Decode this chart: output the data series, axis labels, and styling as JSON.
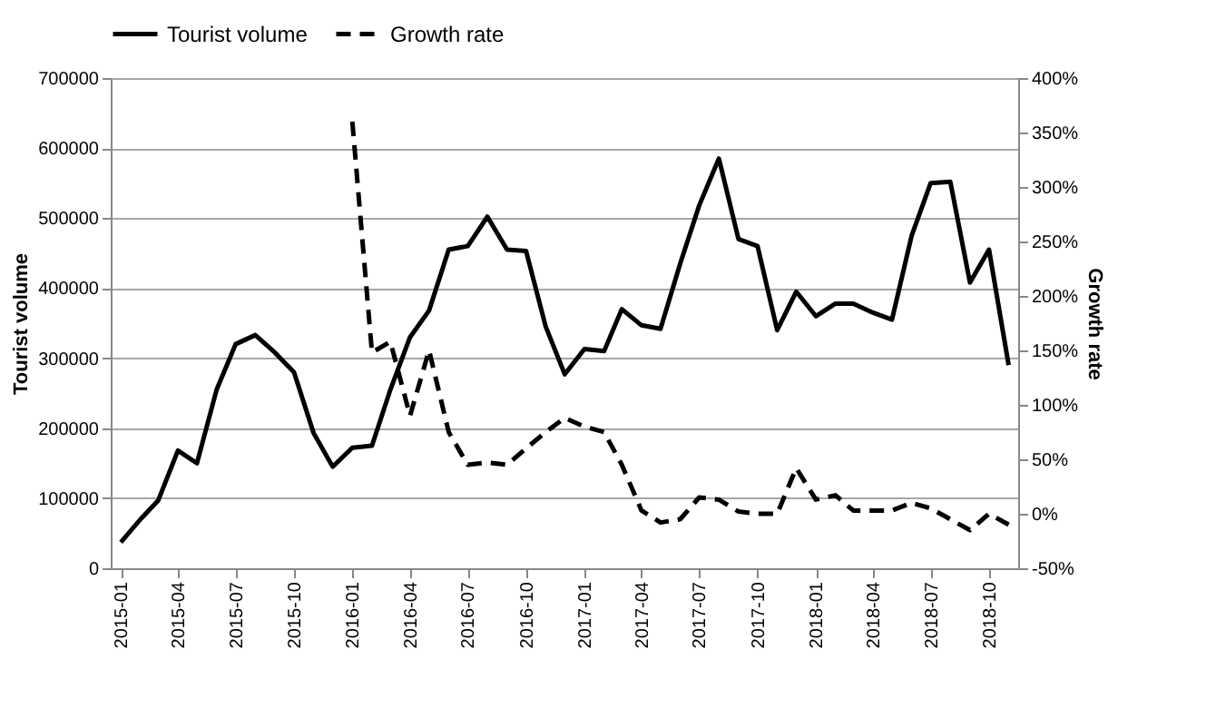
{
  "chart_data": {
    "type": "line",
    "xlabel": null,
    "ylabel": "Tourist volume",
    "y2label": "Growth rate",
    "x": [
      "2015-01",
      "2015-02",
      "2015-03",
      "2015-04",
      "2015-05",
      "2015-06",
      "2015-07",
      "2015-08",
      "2015-09",
      "2015-10",
      "2015-11",
      "2015-12",
      "2016-01",
      "2016-02",
      "2016-03",
      "2016-04",
      "2016-05",
      "2016-06",
      "2016-07",
      "2016-08",
      "2016-09",
      "2016-10",
      "2016-11",
      "2016-12",
      "2017-01",
      "2017-02",
      "2017-03",
      "2017-04",
      "2017-05",
      "2017-06",
      "2017-07",
      "2017-08",
      "2017-09",
      "2017-10",
      "2017-11",
      "2017-12",
      "2018-01",
      "2018-02",
      "2018-03",
      "2018-04",
      "2018-05",
      "2018-06",
      "2018-07",
      "2018-08",
      "2018-09",
      "2018-10",
      "2018-11"
    ],
    "series": [
      {
        "name": "Tourist volume",
        "color": "#000000",
        "line_style": "solid",
        "values": [
          37000,
          70000,
          97000,
          168000,
          150000,
          255000,
          320000,
          333000,
          308000,
          280000,
          193000,
          145000,
          172000,
          175000,
          255000,
          330000,
          368000,
          455000,
          460000,
          502000,
          455000,
          453000,
          345000,
          277000,
          313000,
          310000,
          370000,
          347000,
          342000,
          435000,
          518000,
          585000,
          470000,
          460000,
          340000,
          395000,
          360000,
          378000,
          378000,
          365000,
          355000,
          475000,
          550000,
          552000,
          408000,
          455000,
          290000
        ]
      },
      {
        "name": "Growth rate",
        "color": "#000000",
        "line_style": "dashed",
        "axis": "y2",
        "values": [
          null,
          null,
          null,
          null,
          null,
          null,
          null,
          null,
          null,
          null,
          null,
          null,
          360,
          148,
          158,
          90,
          150,
          75,
          45,
          47,
          45,
          60,
          75,
          88,
          80,
          75,
          45,
          3,
          -8,
          -5,
          15,
          13,
          2,
          0,
          0,
          42,
          13,
          17,
          3,
          3,
          3,
          10,
          5,
          -5,
          -15,
          0,
          -10
        ]
      }
    ],
    "xlim": [
      "2014-12-16",
      "2018-11-16"
    ],
    "xticks": [
      {
        "value": "2015-01",
        "label": "2015-01"
      },
      {
        "value": "2015-04",
        "label": "2015-04"
      },
      {
        "value": "2015-07",
        "label": "2015-07"
      },
      {
        "value": "2015-10",
        "label": "2015-10"
      },
      {
        "value": "2016-01",
        "label": "2016-01"
      },
      {
        "value": "2016-04",
        "label": "2016-04"
      },
      {
        "value": "2016-07",
        "label": "2016-07"
      },
      {
        "value": "2016-10",
        "label": "2016-10"
      },
      {
        "value": "2017-01",
        "label": "2017-01"
      },
      {
        "value": "2017-04",
        "label": "2017-04"
      },
      {
        "value": "2017-07",
        "label": "2017-07"
      },
      {
        "value": "2017-10",
        "label": "2017-10"
      },
      {
        "value": "2018-01",
        "label": "2018-01"
      },
      {
        "value": "2018-04",
        "label": "2018-04"
      },
      {
        "value": "2018-07",
        "label": "2018-07"
      },
      {
        "value": "2018-10",
        "label": "2018-10"
      }
    ],
    "ylim": [
      0,
      700000
    ],
    "yticks": [
      0,
      100000,
      200000,
      300000,
      400000,
      500000,
      600000,
      700000
    ],
    "y2lim": [
      -50,
      400
    ],
    "y2ticks": [
      {
        "value": -50,
        "label": "-50%"
      },
      {
        "value": 0,
        "label": "0%"
      },
      {
        "value": 50,
        "label": "50%"
      },
      {
        "value": 100,
        "label": "100%"
      },
      {
        "value": 150,
        "label": "150%"
      },
      {
        "value": 200,
        "label": "200%"
      },
      {
        "value": 250,
        "label": "250%"
      },
      {
        "value": 300,
        "label": "300%"
      },
      {
        "value": 350,
        "label": "350%"
      },
      {
        "value": 400,
        "label": "400%"
      }
    ],
    "grid": "y",
    "legend": "top",
    "marker": "none"
  }
}
